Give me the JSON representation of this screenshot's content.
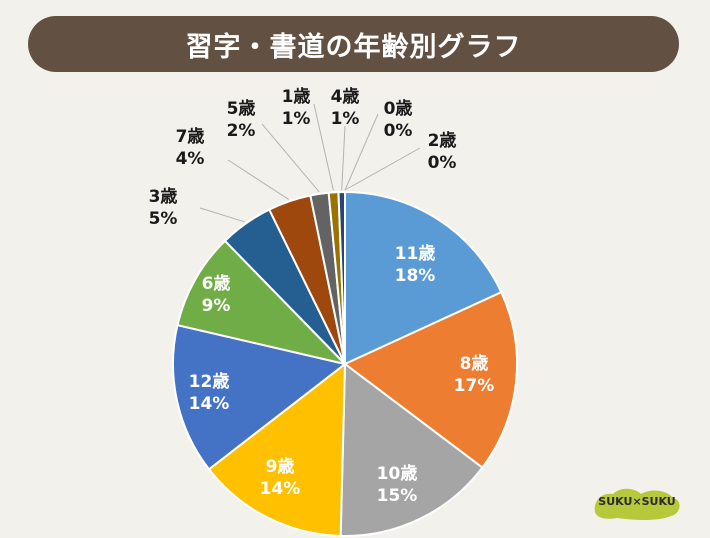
{
  "title": "習字・書道の年齢別グラフ",
  "logo_text": "SUKU×SUKU",
  "chart_data": {
    "type": "pie",
    "title": "習字・書道の年齢別グラフ",
    "slices": [
      {
        "label": "11歳",
        "value": 18,
        "pct_label": "18%",
        "color": "#5b9bd5",
        "label_inside": true
      },
      {
        "label": "8歳",
        "value": 17,
        "pct_label": "17%",
        "color": "#ed7d31",
        "label_inside": true
      },
      {
        "label": "10歳",
        "value": 15,
        "pct_label": "15%",
        "color": "#a5a5a5",
        "label_inside": true
      },
      {
        "label": "9歳",
        "value": 14,
        "pct_label": "14%",
        "color": "#ffc000",
        "label_inside": true
      },
      {
        "label": "12歳",
        "value": 14,
        "pct_label": "14%",
        "color": "#4472c4",
        "label_inside": true
      },
      {
        "label": "6歳",
        "value": 9,
        "pct_label": "9%",
        "color": "#70ad47",
        "label_inside": true
      },
      {
        "label": "3歳",
        "value": 5,
        "pct_label": "5%",
        "color": "#255e91",
        "label_inside": false
      },
      {
        "label": "7歳",
        "value": 4,
        "pct_label": "4%",
        "color": "#9e480e",
        "label_inside": false
      },
      {
        "label": "5歳",
        "value": 1.7,
        "pct_label": "2%",
        "color": "#636363",
        "label_inside": false
      },
      {
        "label": "1歳",
        "value": 0.9,
        "pct_label": "1%",
        "color": "#997300",
        "label_inside": false
      },
      {
        "label": "4歳",
        "value": 0.6,
        "pct_label": "1%",
        "color": "#264478",
        "label_inside": false
      },
      {
        "label": "0歳",
        "value": 0.0,
        "pct_label": "0%",
        "color": "#43682b",
        "label_inside": false
      },
      {
        "label": "2歳",
        "value": 0.0,
        "pct_label": "0%",
        "color": "#698ed0",
        "label_inside": false
      }
    ],
    "legend": "none"
  }
}
